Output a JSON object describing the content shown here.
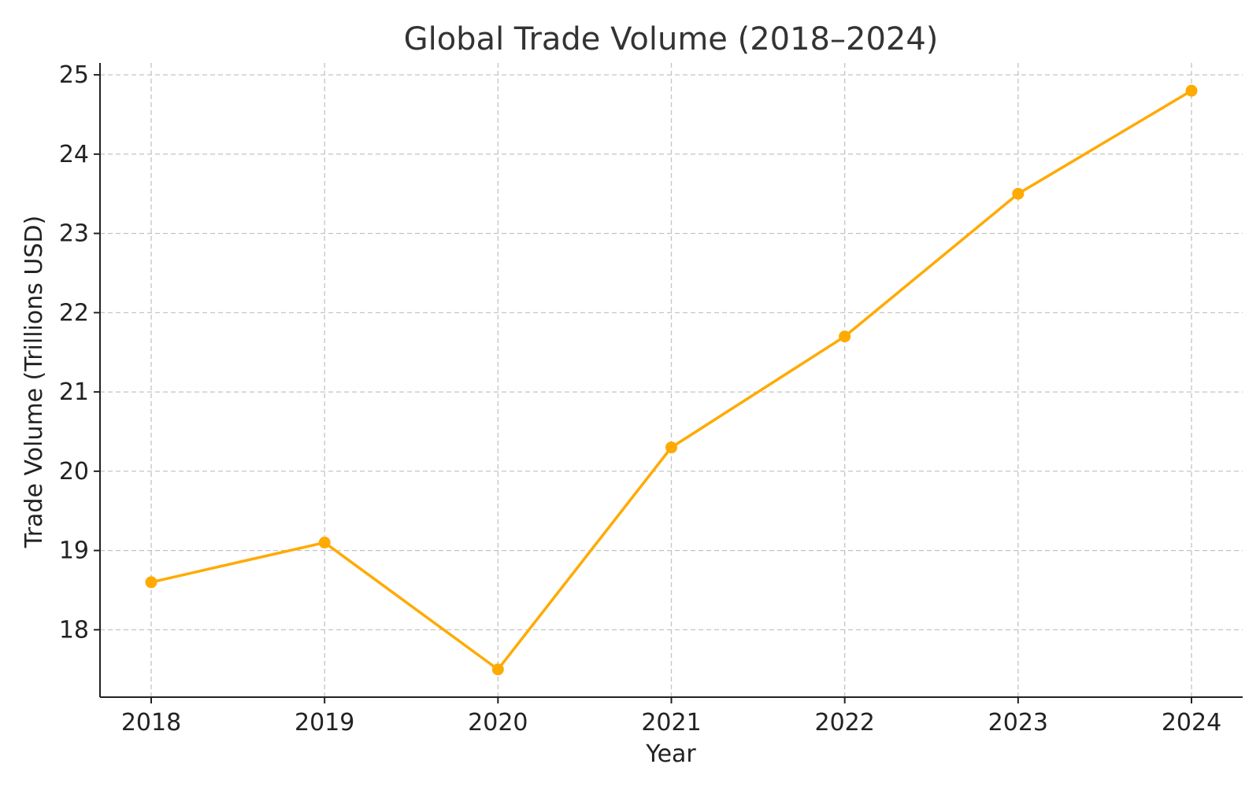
{
  "chart_data": {
    "type": "line",
    "title": "Global Trade Volume (2018–2024)",
    "xlabel": "Year",
    "ylabel": "Trade Volume (Trillions USD)",
    "categories": [
      "2018",
      "2019",
      "2020",
      "2021",
      "2022",
      "2023",
      "2024"
    ],
    "series": [
      {
        "values": [
          18.6,
          19.1,
          17.5,
          20.3,
          21.7,
          23.5,
          24.8
        ]
      }
    ],
    "ylim": [
      17.15,
      25.15
    ],
    "yticks": [
      "18",
      "19",
      "20",
      "21",
      "22",
      "23",
      "24",
      "25"
    ],
    "grid": true,
    "colors": {
      "series": "#FFAA00",
      "axis": "#222222",
      "grid": "#C4C4C4"
    }
  }
}
